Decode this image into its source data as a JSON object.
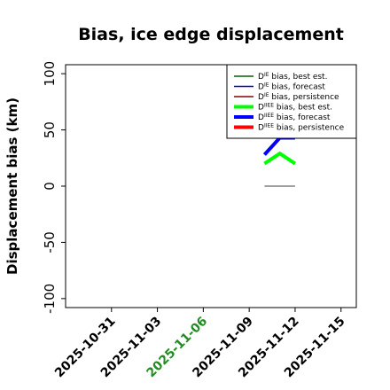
{
  "chart_data": {
    "type": "line",
    "title": "Bias, ice edge displacement",
    "xlabel": "",
    "ylabel": "Displacement bias (km)",
    "ylim": [
      -108,
      108
    ],
    "xlim": [
      "2025-10-28",
      "2025-11-16"
    ],
    "yticks": [
      -100,
      -50,
      0,
      50,
      100
    ],
    "xticks": [
      {
        "date": "2025-10-31",
        "label": "2025-10-31",
        "color": "#000000"
      },
      {
        "date": "2025-11-03",
        "label": "2025-11-03",
        "color": "#000000"
      },
      {
        "date": "2025-11-06",
        "label": "2025-11-06",
        "color": "#228B22"
      },
      {
        "date": "2025-11-09",
        "label": "2025-11-09",
        "color": "#000000"
      },
      {
        "date": "2025-11-12",
        "label": "2025-11-12",
        "color": "#000000"
      },
      {
        "date": "2025-11-15",
        "label": "2025-11-15",
        "color": "#000000"
      }
    ],
    "grid": false,
    "legend_position": "top-right",
    "series": [
      {
        "prefix": "D",
        "sup": "IE",
        "suffix": " bias, best est.",
        "color": "#006400",
        "width": 1.5,
        "x": [],
        "y": []
      },
      {
        "prefix": "D",
        "sup": "IE",
        "suffix": " bias, forecast",
        "color": "#0000cd",
        "width": 1.5,
        "x": [],
        "y": []
      },
      {
        "prefix": "D",
        "sup": "IE",
        "suffix": " bias, persistence",
        "color": "#8b0000",
        "width": 1.5,
        "x": [],
        "y": []
      },
      {
        "prefix": "D",
        "sup": "IIEE",
        "suffix": " bias, best est.",
        "color": "#00ff00",
        "width": 4,
        "x": [
          "2025-11-10",
          "2025-11-11",
          "2025-11-12"
        ],
        "y": [
          20,
          29,
          20
        ]
      },
      {
        "prefix": "D",
        "sup": "IIEE",
        "suffix": " bias, forecast",
        "color": "#0000ff",
        "width": 4,
        "x": [
          "2025-11-10",
          "2025-11-11",
          "2025-11-12"
        ],
        "y": [
          28,
          43,
          43
        ]
      },
      {
        "prefix": "D",
        "sup": "IIEE",
        "suffix": " bias, persistence",
        "color": "#ff0000",
        "width": 4,
        "x": [],
        "y": []
      },
      {
        "prefix": "",
        "sup": "",
        "suffix": "",
        "color": "#808080",
        "width": 1.5,
        "legend": false,
        "x": [
          "2025-11-10",
          "2025-11-12"
        ],
        "y": [
          0,
          0
        ]
      }
    ]
  }
}
